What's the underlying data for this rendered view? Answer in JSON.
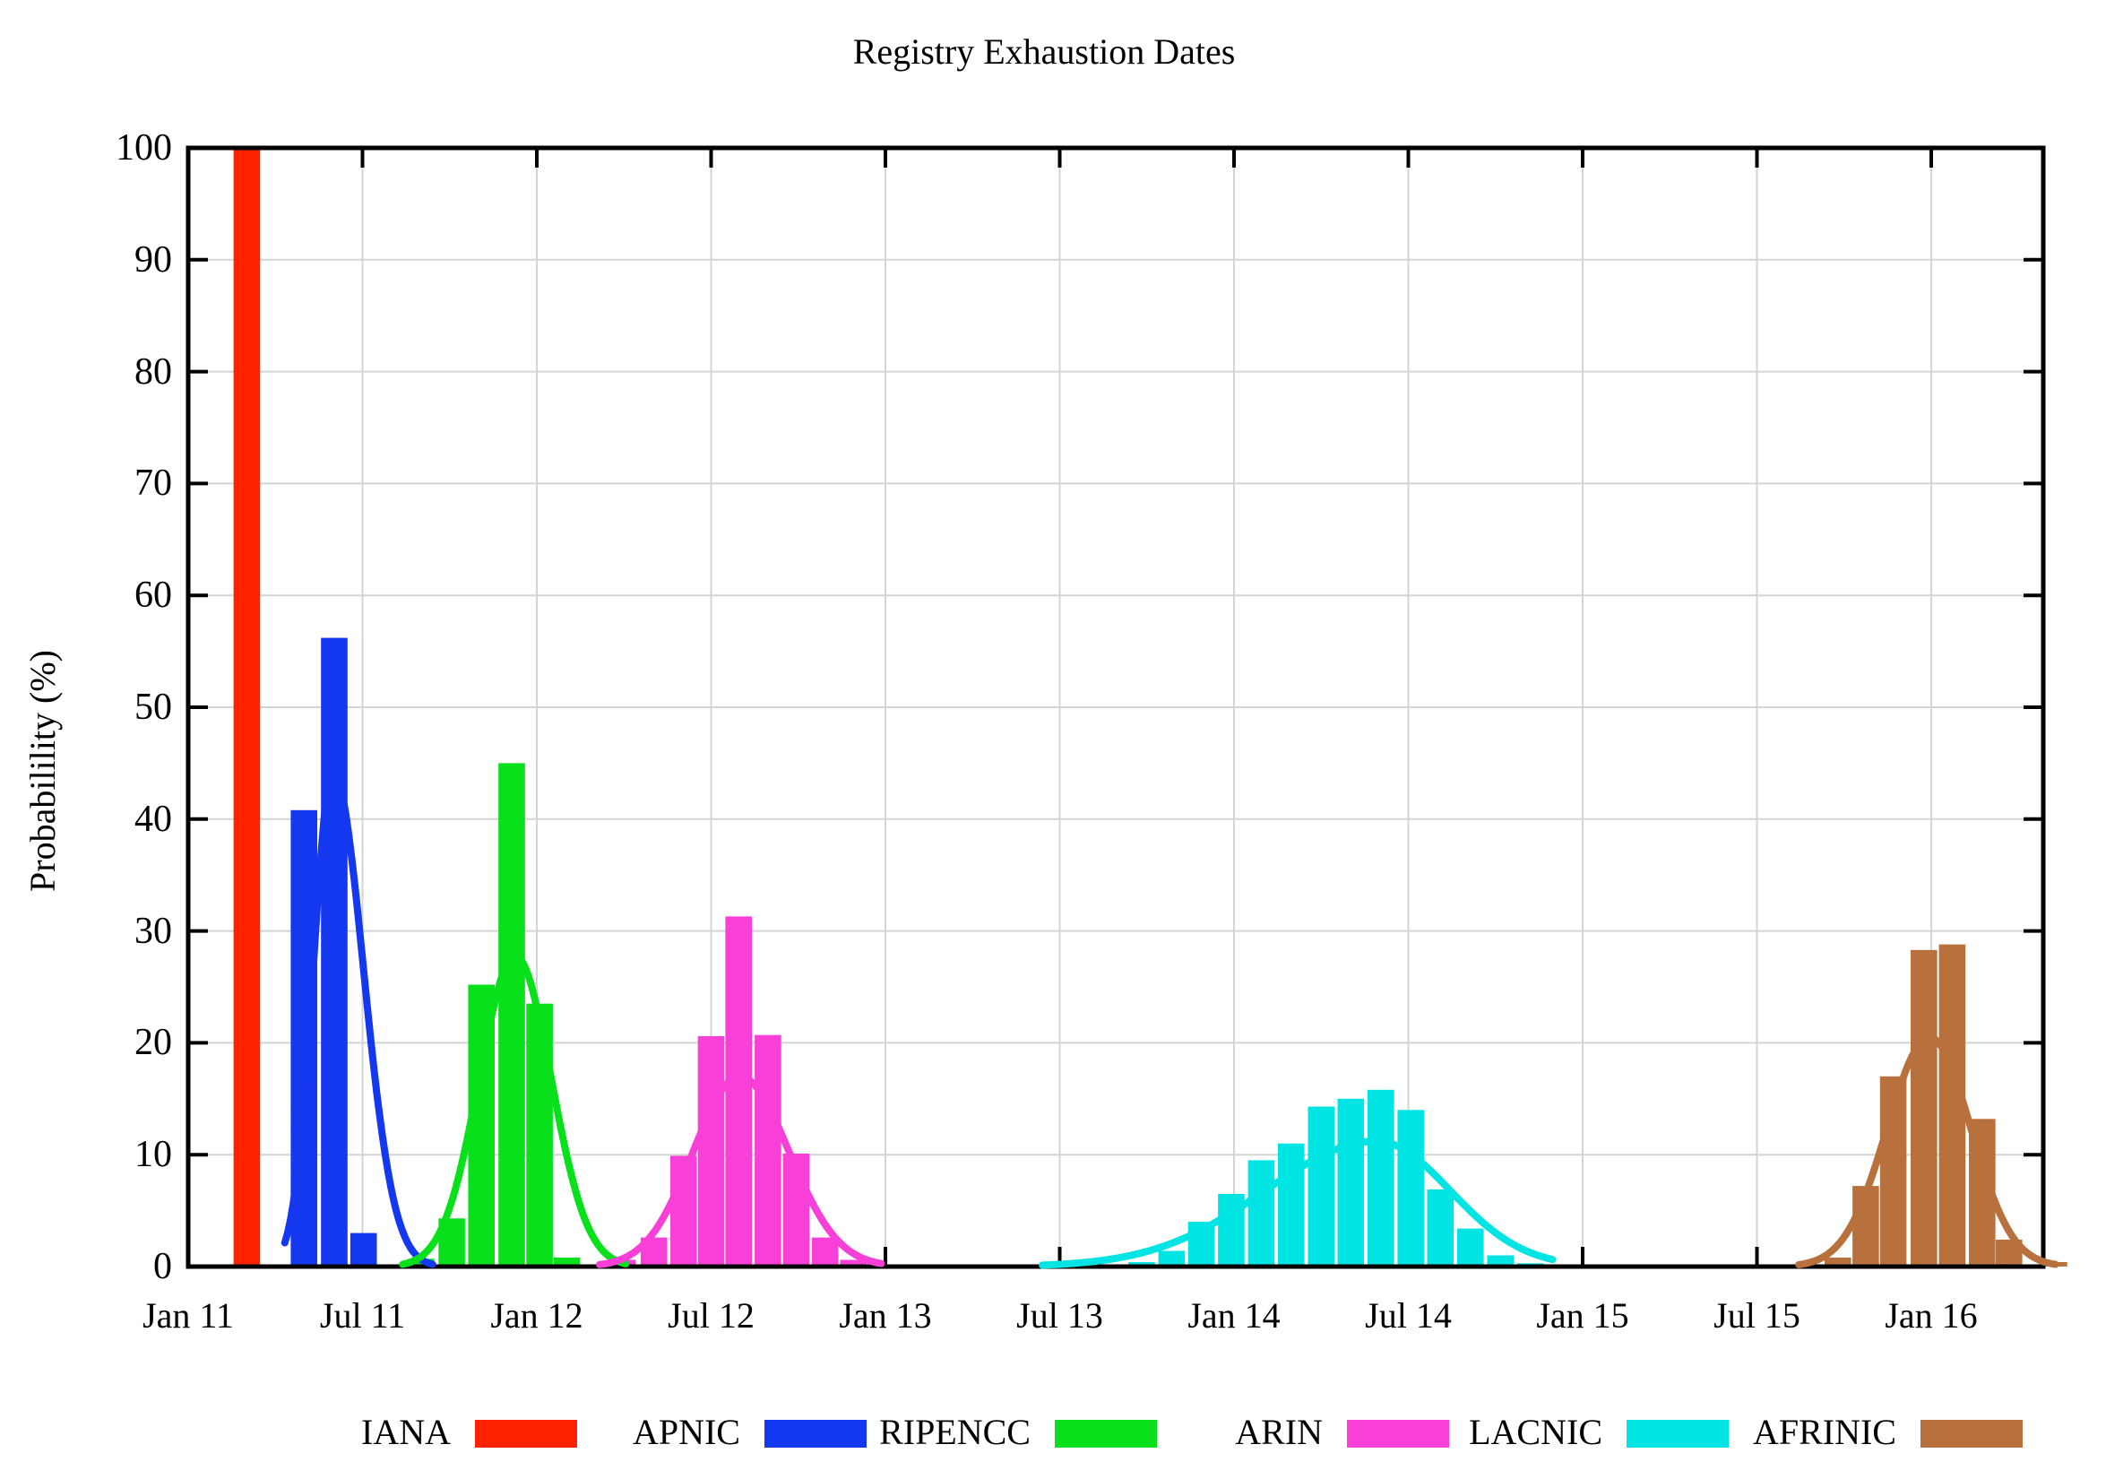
{
  "title": "Registry Exhaustion Dates",
  "y_axis": {
    "label": "Probabilility (%)",
    "ticks": [
      "0",
      "10",
      "20",
      "30",
      "40",
      "50",
      "60",
      "70",
      "80",
      "90",
      "100"
    ],
    "min": 0,
    "max": 100
  },
  "x_axis": {
    "ticks": [
      "Jan 11",
      "Jul 11",
      "Jan 12",
      "Jul 12",
      "Jan 13",
      "Jul 13",
      "Jan 14",
      "Jul 14",
      "Jan 15",
      "Jul 15",
      "Jan 16"
    ]
  },
  "legend": [
    {
      "label": "IANA",
      "color": "#ff2200"
    },
    {
      "label": "APNIC",
      "color": "#1437f0"
    },
    {
      "label": "RIPENCC",
      "color": "#09e01c"
    },
    {
      "label": "ARIN",
      "color": "#f840d8"
    },
    {
      "label": "LACNIC",
      "color": "#00e4e4"
    },
    {
      "label": "AFRINIC",
      "color": "#b8713c"
    }
  ],
  "chart_data": {
    "type": "bar",
    "title": "Registry Exhaustion Dates",
    "ylabel": "Probabilility (%)",
    "ylim": [
      0,
      100
    ],
    "grid": true,
    "legend_position": "bottom",
    "x_unit": "years_since_jan_2011",
    "x_tick_labels": [
      "Jan 11",
      "Jul 11",
      "Jan 12",
      "Jul 12",
      "Jan 13",
      "Jul 13",
      "Jan 14",
      "Jul 14",
      "Jan 15",
      "Jul 15",
      "Jan 16"
    ],
    "bar_width_t": 0.076,
    "series": [
      {
        "name": "IANA",
        "color": "#ff2200",
        "bars": [
          {
            "t": 0.168,
            "month": "Feb 11",
            "value": 100
          }
        ],
        "curve": null
      },
      {
        "name": "APNIC",
        "color": "#1437f0",
        "bars": [
          {
            "t": 0.332,
            "month": "May 11",
            "value": 40.8
          },
          {
            "t": 0.419,
            "month": "Jun 11",
            "value": 56.2
          },
          {
            "t": 0.503,
            "month": "Jul 11",
            "value": 3.0
          }
        ],
        "curve": {
          "center_t": 0.415,
          "peak": 44.3,
          "sigma_left_t": 0.056,
          "sigma_right_t": 0.087,
          "range_t": [
            0.277,
            0.705
          ]
        }
      },
      {
        "name": "RIPENCC",
        "color": "#09e01c",
        "bars": [
          {
            "t": 0.668,
            "month": "Sep 11",
            "value": 0.7
          },
          {
            "t": 0.756,
            "month": "Oct 11",
            "value": 4.3
          },
          {
            "t": 0.841,
            "month": "Nov 11",
            "value": 25.2
          },
          {
            "t": 0.928,
            "month": "Dec 11",
            "value": 45.0
          },
          {
            "t": 1.008,
            "month": "Jan 12",
            "value": 23.5
          },
          {
            "t": 1.086,
            "month": "Feb 12",
            "value": 0.8
          }
        ],
        "curve": {
          "center_t": 0.938,
          "peak": 27.8,
          "sigma_left_t": 0.103,
          "sigma_right_t": 0.103,
          "range_t": [
            0.615,
            1.26
          ]
        }
      },
      {
        "name": "ARIN",
        "color": "#f840d8",
        "bars": [
          {
            "t": 1.246,
            "month": "Apr 12",
            "value": 0.6
          },
          {
            "t": 1.336,
            "month": "May 12",
            "value": 2.6
          },
          {
            "t": 1.421,
            "month": "Jun 12",
            "value": 9.9
          },
          {
            "t": 1.5,
            "month": "Jul 12",
            "value": 20.6
          },
          {
            "t": 1.579,
            "month": "Aug 12",
            "value": 31.3
          },
          {
            "t": 1.663,
            "month": "Sep 12",
            "value": 20.7
          },
          {
            "t": 1.744,
            "month": "Oct 12",
            "value": 10.1
          },
          {
            "t": 1.827,
            "month": "Nov 12",
            "value": 2.6
          },
          {
            "t": 1.908,
            "month": "Dec 12",
            "value": 0.6
          }
        ],
        "curve": {
          "center_t": 1.582,
          "peak": 17.0,
          "sigma_left_t": 0.133,
          "sigma_right_t": 0.141,
          "range_t": [
            1.18,
            1.99
          ]
        }
      },
      {
        "name": "LACNIC",
        "color": "#00e4e4",
        "bars": [
          {
            "t": 2.735,
            "month": "Oct 13",
            "value": 0.4
          },
          {
            "t": 2.821,
            "month": "Nov 13",
            "value": 1.4
          },
          {
            "t": 2.906,
            "month": "Dec 13",
            "value": 4.0
          },
          {
            "t": 2.992,
            "month": "Jan 14",
            "value": 6.5
          },
          {
            "t": 3.078,
            "month": "Feb 14",
            "value": 9.5
          },
          {
            "t": 3.164,
            "month": "Mar 14",
            "value": 11.0
          },
          {
            "t": 3.25,
            "month": "Apr 14",
            "value": 14.3
          },
          {
            "t": 3.335,
            "month": "May 14",
            "value": 15.0
          },
          {
            "t": 3.421,
            "month": "Jun 14",
            "value": 15.8
          },
          {
            "t": 3.507,
            "month": "Jul 14",
            "value": 14.0
          },
          {
            "t": 3.592,
            "month": "Aug 14",
            "value": 6.9
          },
          {
            "t": 3.678,
            "month": "Sep 14",
            "value": 3.4
          },
          {
            "t": 3.764,
            "month": "Oct 14",
            "value": 1.0
          },
          {
            "t": 3.85,
            "month": "Nov 14",
            "value": 0.3
          }
        ],
        "curve": {
          "center_t": 3.41,
          "peak": 11.2,
          "sigma_left_t": 0.321,
          "sigma_right_t": 0.21,
          "range_t": [
            2.45,
            3.92
          ]
        }
      },
      {
        "name": "AFRINIC",
        "color": "#b8713c",
        "bars": [
          {
            "t": 4.732,
            "month": "Oct 15",
            "value": 0.8
          },
          {
            "t": 4.812,
            "month": "Nov 15",
            "value": 7.2
          },
          {
            "t": 4.891,
            "month": "Dec 15",
            "value": 17.0
          },
          {
            "t": 4.979,
            "month": "Jan 16",
            "value": 28.3
          },
          {
            "t": 5.06,
            "month": "Feb 16",
            "value": 28.8
          },
          {
            "t": 5.146,
            "month": "Mar 16",
            "value": 13.2
          },
          {
            "t": 5.223,
            "month": "Apr 16",
            "value": 2.4
          },
          {
            "t": 5.352,
            "month": "May 16",
            "value": 0.4
          }
        ],
        "curve": {
          "center_t": 4.995,
          "peak": 20.5,
          "sigma_left_t": 0.121,
          "sigma_right_t": 0.118,
          "range_t": [
            4.62,
            5.36
          ]
        }
      }
    ]
  }
}
